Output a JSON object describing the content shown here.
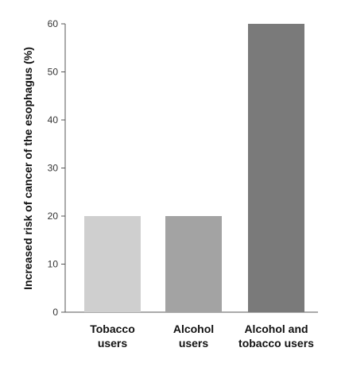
{
  "chart_data": {
    "type": "bar",
    "title": "",
    "xlabel": "",
    "ylabel": "Increased risk of cancer of the esophagus (%)",
    "ylim": [
      0,
      60
    ],
    "yticks": [
      0,
      10,
      20,
      30,
      40,
      50,
      60
    ],
    "grid": false,
    "categories": [
      [
        "Tobacco",
        "users"
      ],
      [
        "Alcohol",
        "users"
      ],
      [
        "Alcohol and",
        "tobacco users"
      ]
    ],
    "values": [
      20,
      20,
      60
    ],
    "colors": [
      "#cfcfcf",
      "#a3a3a3",
      "#7a7a7a"
    ],
    "axis_color": "#555555"
  }
}
